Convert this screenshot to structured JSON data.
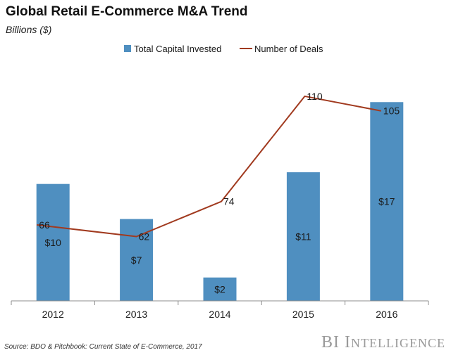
{
  "brand": {
    "part1": "BI",
    "part2_initial": "I",
    "part2_rest": "NTELLIGENCE"
  },
  "source": "Source: BDO & Pitchbook: Current State of E-Commerce, 2017",
  "colors": {
    "bar": "#4f8fc0",
    "line": "#a13a1f",
    "axis": "#8c8c8c",
    "brand": "#9a9a9a"
  },
  "chart_data": {
    "type": "bar",
    "title": "Global Retail E-Commerce M&A Trend",
    "subtitle": "Billions ($)",
    "categories": [
      "2012",
      "2013",
      "2014",
      "2015",
      "2016"
    ],
    "legend_position": "top-center",
    "grid": false,
    "series": [
      {
        "name": "Total Capital Invested",
        "type": "bar",
        "values": [
          10,
          7,
          2,
          11,
          17
        ],
        "labels": [
          "$10",
          "$7",
          "$2",
          "$11",
          "$17"
        ],
        "ylim": [
          0,
          19
        ]
      },
      {
        "name": "Number of Deals",
        "type": "line",
        "values": [
          66,
          62,
          74,
          110,
          105
        ],
        "labels": [
          "66",
          "62",
          "74",
          "110",
          "105"
        ],
        "ylim": [
          40,
          116
        ]
      }
    ]
  }
}
